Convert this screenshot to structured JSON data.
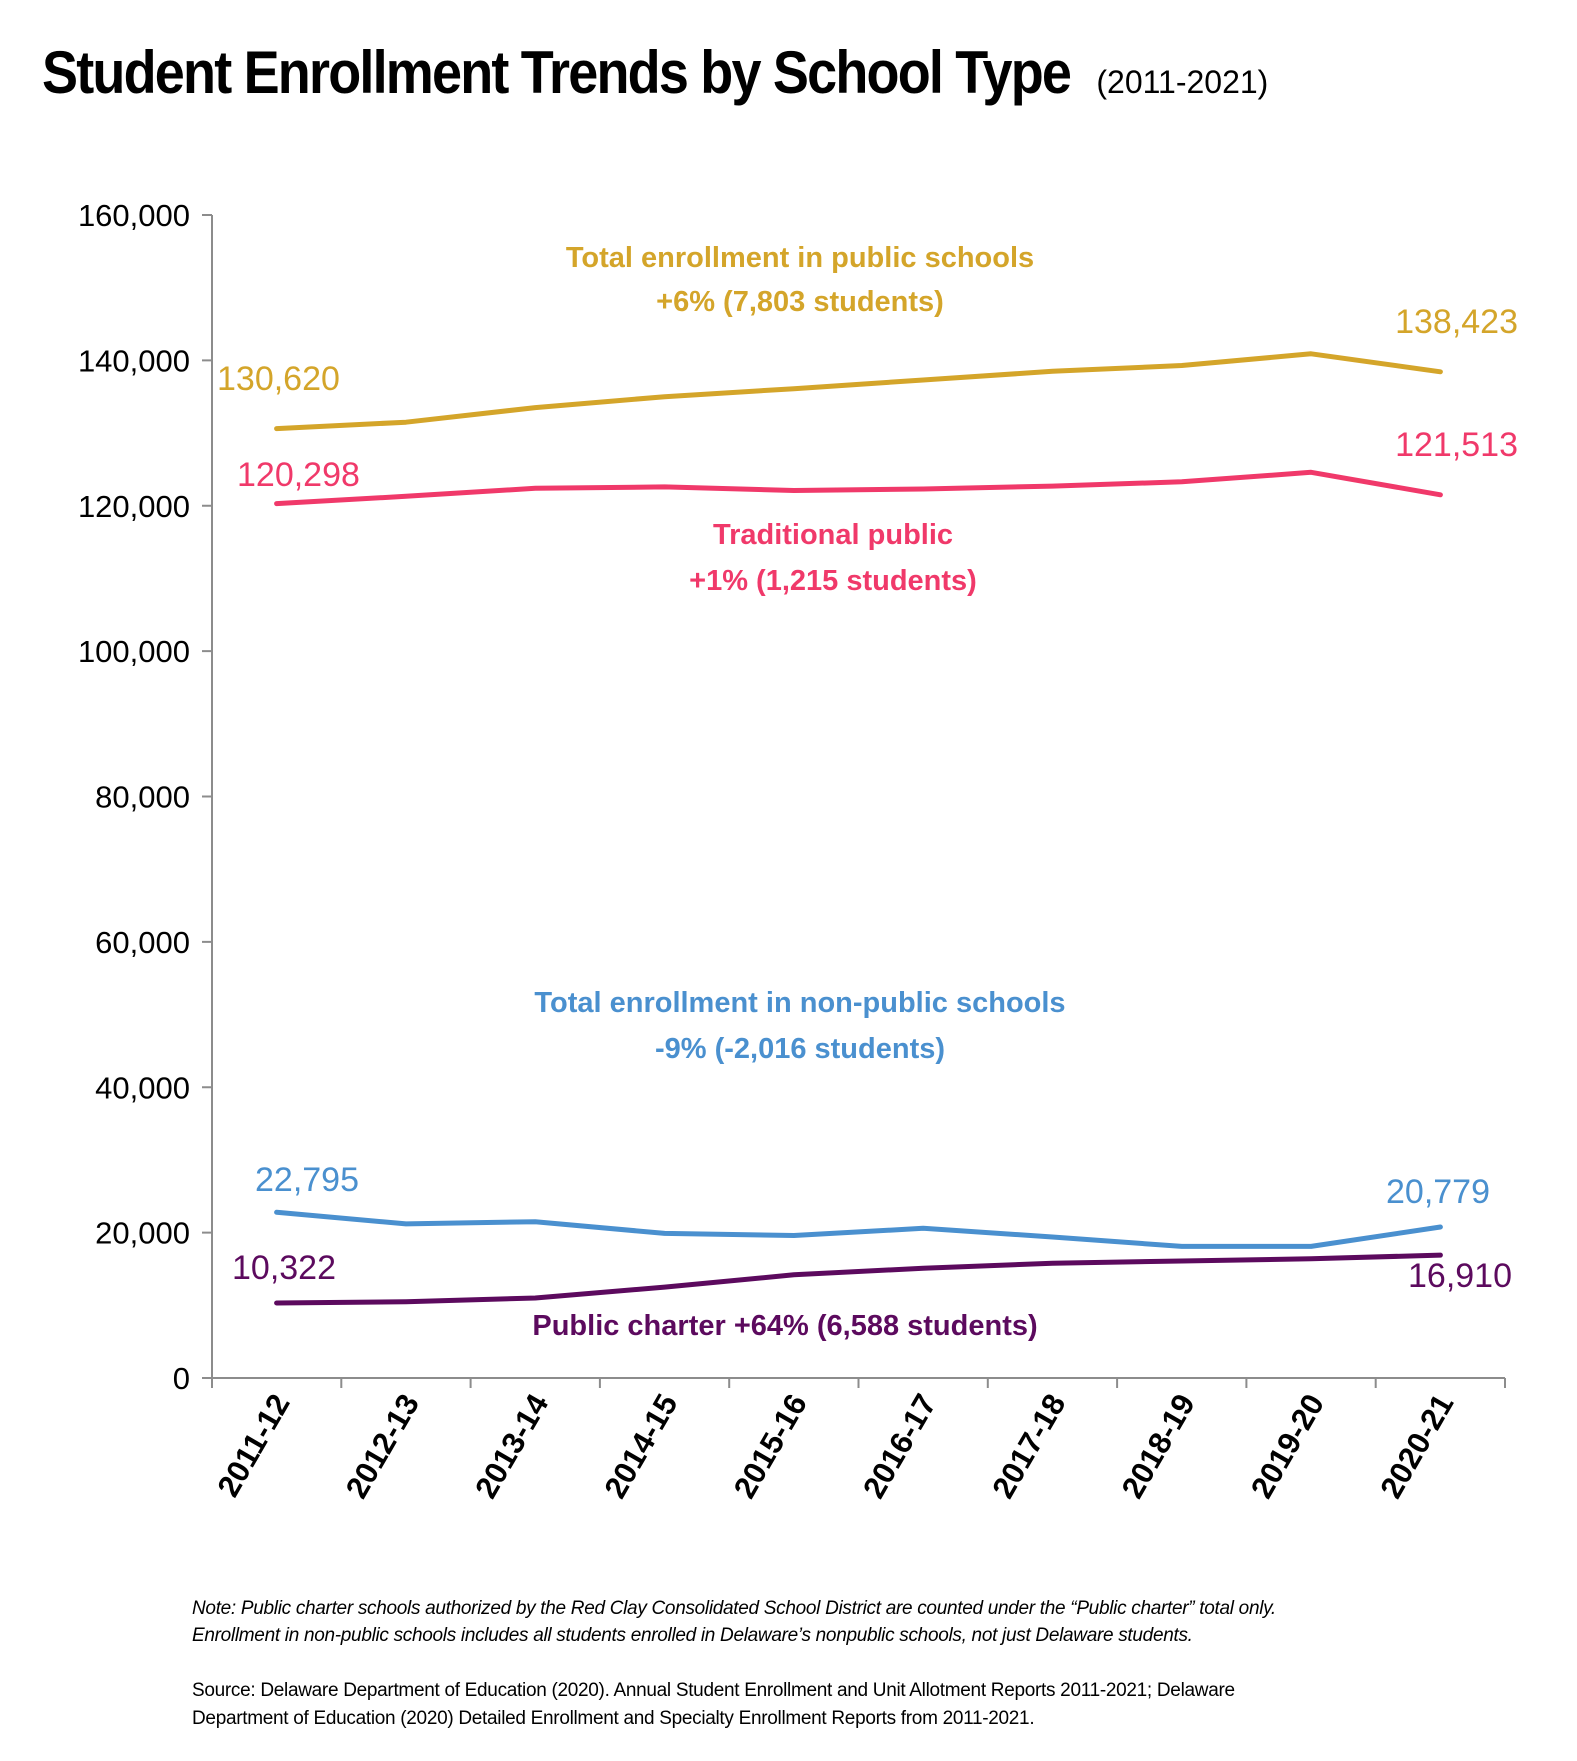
{
  "title": "Student Enrollment Trends by School Type",
  "subtitle": "(2011-2021)",
  "note_lines": [
    "Note: Public charter schools authorized by the Red Clay Consolidated School District are counted under the “Public charter” total only.",
    "Enrollment in non-public schools includes all students enrolled in Delaware’s nonpublic schools, not just Delaware students."
  ],
  "source_lines": [
    "Source: Delaware Department of Education (2020). Annual Student Enrollment and Unit Allotment Reports 2011-2021; Delaware",
    "Department of Education (2020) Detailed Enrollment and Specialty Enrollment Reports from 2011-2021."
  ],
  "chart_data": {
    "type": "line",
    "title": "Student Enrollment Trends by School Type",
    "subtitle": "(2011-2021)",
    "xlabel": "",
    "ylabel": "",
    "ylim": [
      0,
      160000
    ],
    "yticks": [
      0,
      20000,
      40000,
      60000,
      80000,
      100000,
      120000,
      140000,
      160000
    ],
    "ytick_labels": [
      "0",
      "20,000",
      "40,000",
      "60,000",
      "80,000",
      "100,000",
      "120,000",
      "140,000",
      "160,000"
    ],
    "grid": false,
    "legend": "none",
    "categories": [
      "2011-12",
      "2012-13",
      "2013-14",
      "2014-15",
      "2015-16",
      "2016-17",
      "2017-18",
      "2018-19",
      "2019-20",
      "2020-21"
    ],
    "series": [
      {
        "key": "total_public",
        "color": "#D4A52A",
        "values": [
          130620,
          131500,
          133500,
          135000,
          136100,
          137300,
          138500,
          139300,
          140900,
          138423
        ],
        "label_lines": [
          "Total enrollment in public schools",
          "+6% (7,803 students)"
        ],
        "start_label": "130,620",
        "end_label": "138,423"
      },
      {
        "key": "traditional_public",
        "color": "#F0396A",
        "values": [
          120298,
          121300,
          122400,
          122600,
          122100,
          122300,
          122700,
          123300,
          124600,
          121513
        ],
        "label_lines": [
          "Traditional public",
          "+1% (1,215 students)"
        ],
        "start_label": "120,298",
        "end_label": "121,513"
      },
      {
        "key": "non_public",
        "color": "#4A90CF",
        "values": [
          22795,
          21200,
          21500,
          19900,
          19600,
          20600,
          19400,
          18100,
          18100,
          20779
        ],
        "label_lines": [
          "Total enrollment in non-public schools",
          "-9% (-2,016 students)"
        ],
        "start_label": "22,795",
        "end_label": "20,779"
      },
      {
        "key": "public_charter",
        "color": "#5C0A5E",
        "values": [
          10322,
          10500,
          11000,
          12500,
          14200,
          15100,
          15800,
          16100,
          16400,
          16910
        ],
        "label_lines": [
          "Public charter +64% (6,588 students)"
        ],
        "start_label": "10,322",
        "end_label": "16,910"
      }
    ]
  }
}
